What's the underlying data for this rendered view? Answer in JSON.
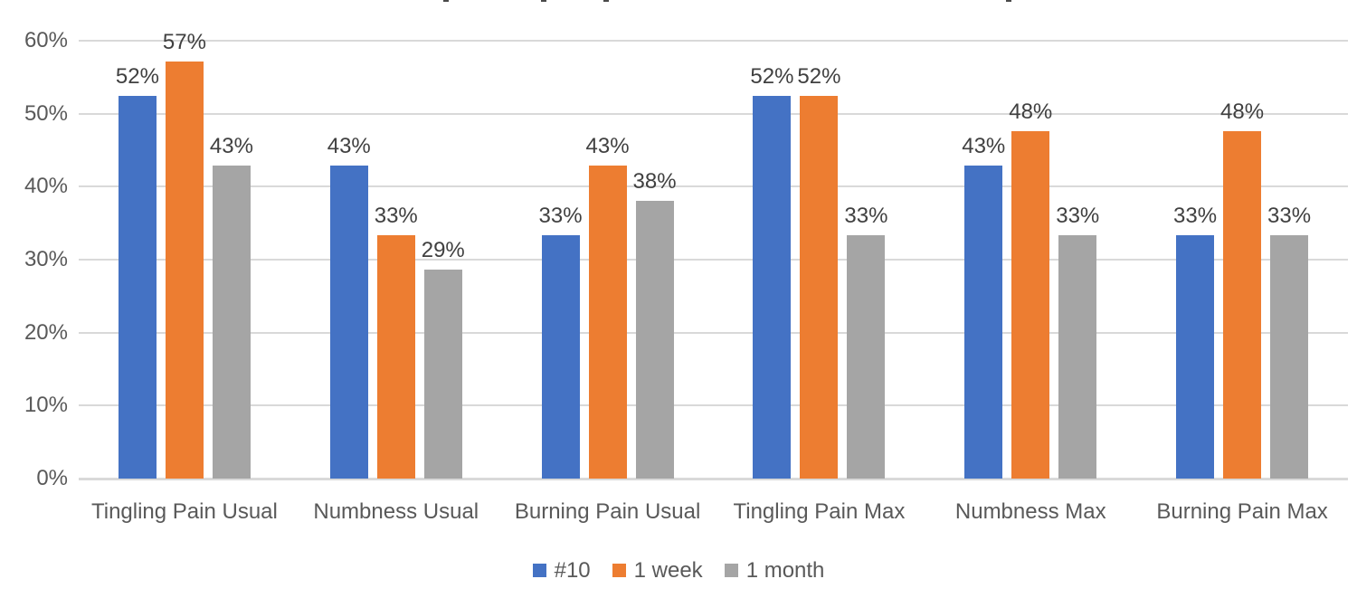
{
  "chart_data": {
    "type": "bar",
    "title": "",
    "title_note": "title cropped out of frame at top edge",
    "categories": [
      "Tingling Pain Usual",
      "Numbness Usual",
      "Burning Pain Usual",
      "Tingling Pain Max",
      "Numbness Max",
      "Burning Pain Max"
    ],
    "series": [
      {
        "name": "#10",
        "color": "#4472C4",
        "values": [
          52.4,
          42.9,
          33.3,
          52.4,
          42.9,
          33.3
        ],
        "labels": [
          "52%",
          "43%",
          "33%",
          "52%",
          "43%",
          "33%"
        ]
      },
      {
        "name": "1 week",
        "color": "#ED7D31",
        "values": [
          57.1,
          33.3,
          42.9,
          52.4,
          47.6,
          47.6
        ],
        "labels": [
          "57%",
          "33%",
          "43%",
          "52%",
          "48%",
          "48%"
        ]
      },
      {
        "name": "1 month",
        "color": "#A5A5A5",
        "values": [
          42.9,
          28.6,
          38.1,
          33.3,
          33.3,
          33.3
        ],
        "labels": [
          "43%",
          "29%",
          "38%",
          "33%",
          "33%",
          "33%"
        ]
      }
    ],
    "yticks": [
      "0%",
      "10%",
      "20%",
      "30%",
      "40%",
      "50%",
      "60%"
    ],
    "ylim": [
      0,
      60
    ],
    "xlabel": "",
    "ylabel": "",
    "grid": true,
    "legend_position": "bottom",
    "colors": {
      "gridline": "#D9D9D9",
      "axis_line": "#D9D9D9",
      "axis_text": "#595959",
      "data_label_text": "#404040",
      "background": "#FFFFFF"
    }
  }
}
